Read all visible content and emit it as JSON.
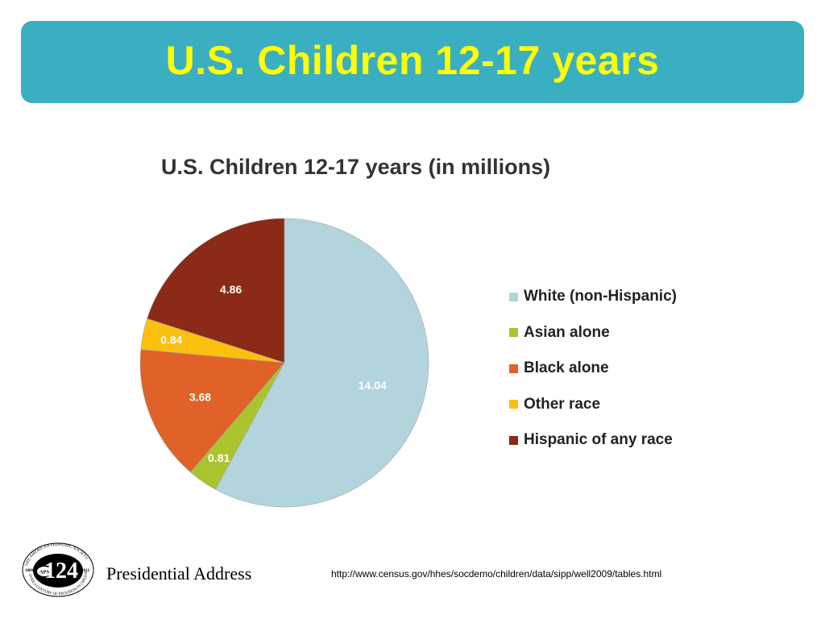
{
  "slide": {
    "title": "U.S. Children 12-17 years"
  },
  "colors": {
    "title_bar": "#3aafc2",
    "title_text": "#ffff00"
  },
  "chart_data": {
    "type": "pie",
    "title": "U.S. Children 12-17 years (in millions)",
    "slices": [
      {
        "label": "White (non-Hispanic)",
        "value": 14.04,
        "value_label": "14.04",
        "color": "#b2d4dd"
      },
      {
        "label": "Asian alone",
        "value": 0.81,
        "value_label": "0.81",
        "color": "#a9c42c"
      },
      {
        "label": "Black alone",
        "value": 3.68,
        "value_label": "3.68",
        "color": "#e06228"
      },
      {
        "label": "Other race",
        "value": 0.84,
        "value_label": "0.84",
        "color": "#fbbf0d"
      },
      {
        "label": "Hispanic of any race",
        "value": 4.86,
        "value_label": "4.86",
        "color": "#8b2a16"
      }
    ],
    "start": "12 o'clock",
    "direction": "clockwise",
    "legend_position": "right"
  },
  "footer": {
    "logo_text": "124",
    "logo_ring_text": "THE AMERICAN PEDIATRIC SOCIETY · OVER A CENTURY OF PROGRESS IN CHILD HEALTH",
    "logo_year_left": "1888",
    "logo_year_right": "2012",
    "logo_badge": "APS",
    "label": "Presidential Address",
    "url": "http://www.census.gov/hhes/socdemo/children/data/sipp/well2009/tables.html"
  }
}
